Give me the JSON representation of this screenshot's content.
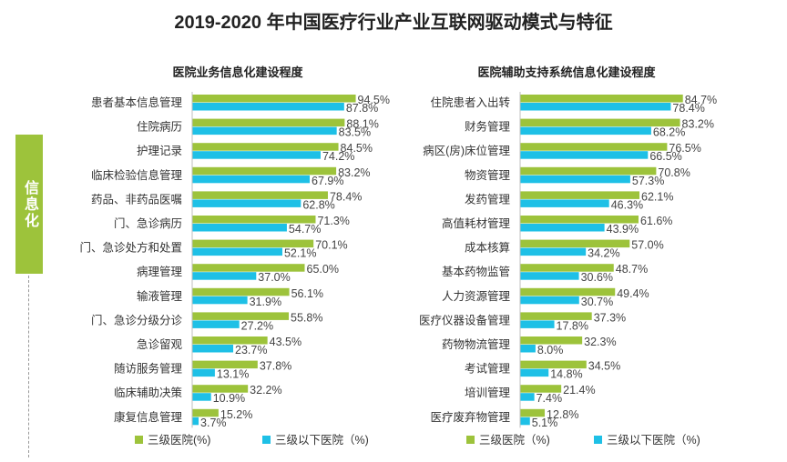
{
  "title": "2019-2020 年中国医疗行业产业互联网驱动模式与特征",
  "side_label": "信息化",
  "colors": {
    "tier3": "#9dc33b",
    "below": "#1ec0e6"
  },
  "chart_data": [
    {
      "type": "bar",
      "orientation": "horizontal",
      "title": "医院业务信息化建设程度",
      "categories": [
        "患者基本信息管理",
        "住院病历",
        "护理记录",
        "临床检验信息管理",
        "药品、非药品医嘱",
        "门、急诊病历",
        "门、急诊处方和处置",
        "病理管理",
        "输液管理",
        "门、急诊分级分诊",
        "急诊留观",
        "随访服务管理",
        "临床辅助决策",
        "康复信息管理"
      ],
      "series": [
        {
          "name": "三级医院(%)",
          "values": [
            94.5,
            88.1,
            84.5,
            83.2,
            78.4,
            71.3,
            70.1,
            65.0,
            56.1,
            55.8,
            43.5,
            37.8,
            32.2,
            15.2
          ]
        },
        {
          "name": "三级以下医院（%)",
          "values": [
            87.8,
            83.5,
            74.2,
            67.9,
            62.8,
            54.7,
            52.1,
            37.0,
            31.9,
            27.2,
            23.7,
            13.1,
            10.9,
            3.7
          ]
        }
      ],
      "xlim": [
        0,
        100
      ]
    },
    {
      "type": "bar",
      "orientation": "horizontal",
      "title": "医院辅助支持系统信息化建设程度",
      "categories": [
        "住院患者入出转",
        "财务管理",
        "病区(房)床位管理",
        "物资管理",
        "发药管理",
        "高值耗材管理",
        "成本核算",
        "基本药物监管",
        "人力资源管理",
        "医疗仪器设备管理",
        "药物物流管理",
        "考试管理",
        "培训管理",
        "医疗废弃物管理"
      ],
      "series": [
        {
          "name": "三级医院（%)",
          "values": [
            84.7,
            83.2,
            76.5,
            70.8,
            62.1,
            61.6,
            57.0,
            48.7,
            49.4,
            37.3,
            32.3,
            34.5,
            21.4,
            12.8
          ]
        },
        {
          "name": "三级以下医院（%)",
          "values": [
            78.4,
            68.2,
            66.5,
            57.3,
            46.3,
            43.9,
            34.2,
            30.6,
            30.7,
            17.8,
            8.0,
            14.8,
            7.4,
            5.1
          ]
        }
      ],
      "xlim": [
        0,
        100
      ]
    }
  ]
}
